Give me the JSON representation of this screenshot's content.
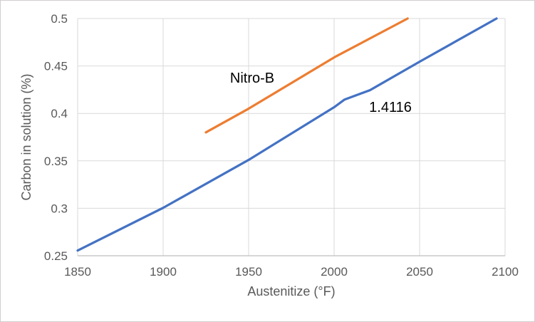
{
  "chart_data": {
    "type": "line",
    "title": "",
    "xlabel": "Austenitize (°F)",
    "ylabel": "Carbon in solution (%)",
    "xlim": [
      1850,
      2100
    ],
    "ylim": [
      0.25,
      0.5
    ],
    "x_ticks": [
      1850,
      1900,
      1950,
      2000,
      2050,
      2100
    ],
    "x_tick_labels": [
      "1850",
      "1900",
      "1950",
      "2000",
      "2050",
      "2100"
    ],
    "y_ticks": [
      0.25,
      0.3,
      0.35,
      0.4,
      0.45,
      0.5
    ],
    "y_tick_labels": [
      "0.25",
      "0.3",
      "0.35",
      "0.4",
      "0.45",
      "0.5"
    ],
    "grid": true,
    "legend_position": "inline-data-labels",
    "series": [
      {
        "name": "Nitro-B",
        "color": "#ED7D31",
        "points": [
          [
            1925,
            0.38
          ],
          [
            1950,
            0.405
          ],
          [
            2000,
            0.459
          ],
          [
            2043,
            0.5
          ]
        ]
      },
      {
        "name": "1.4116",
        "color": "#4472C4",
        "points": [
          [
            1850,
            0.2555
          ],
          [
            1900,
            0.3005
          ],
          [
            1950,
            0.351
          ],
          [
            2000,
            0.4065
          ],
          [
            2006,
            0.4145
          ],
          [
            2021,
            0.4245
          ],
          [
            2050,
            0.4545
          ],
          [
            2095,
            0.5
          ]
        ]
      }
    ]
  },
  "colors": {
    "series_nitro_b": "#ED7D31",
    "series_1_4116": "#4472C4",
    "gridline": "#D9D9D9",
    "axis_line": "#BFBFBF",
    "tick_text": "#595959",
    "axis_title_text": "#595959",
    "data_label_text": "#000000",
    "background": "#FFFFFF",
    "frame_border": "#D0CECE"
  }
}
